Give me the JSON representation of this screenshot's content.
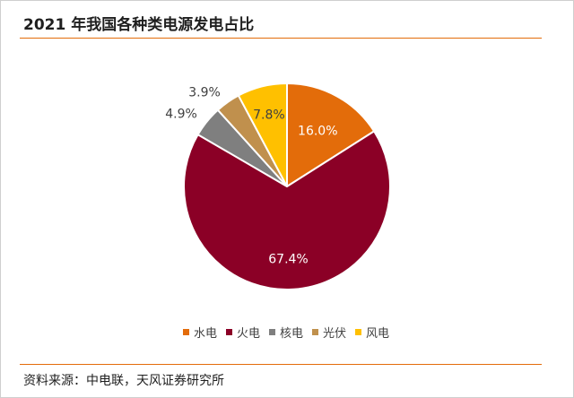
{
  "title": "2021 年我国各种类电源发电占比",
  "source": "资料来源：中电联，天风证券研究所",
  "chart_data": {
    "type": "pie",
    "categories": [
      "水电",
      "火电",
      "核电",
      "光伏",
      "风电"
    ],
    "values": [
      16.0,
      67.4,
      4.9,
      3.9,
      7.8
    ],
    "labels": [
      "16.0%",
      "67.4%",
      "4.9%",
      "3.9%",
      "7.8%"
    ],
    "colors": [
      "#e36c0a",
      "#8b0026",
      "#7f7f7f",
      "#c0904d",
      "#ffc000"
    ],
    "label_colors": [
      "#ffffff",
      "#ffffff",
      "#404040",
      "#404040",
      "#404040"
    ],
    "label_positions": [
      "inside",
      "inside",
      "outside",
      "outside",
      "inside"
    ],
    "start_angle": "12 o'clock",
    "direction": "clockwise",
    "legend_position": "bottom"
  },
  "legend": [
    {
      "label": "水电",
      "color": "#e36c0a"
    },
    {
      "label": "火电",
      "color": "#8b0026"
    },
    {
      "label": "核电",
      "color": "#7f7f7f"
    },
    {
      "label": "光伏",
      "color": "#c0904d"
    },
    {
      "label": "风电",
      "color": "#ffc000"
    }
  ]
}
